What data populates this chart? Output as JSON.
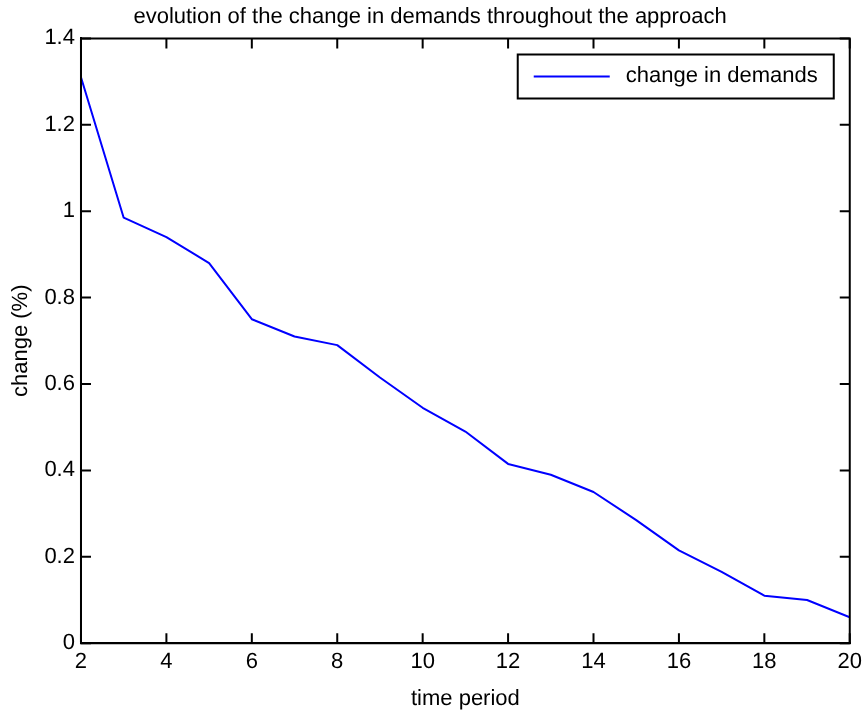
{
  "chart_data": {
    "type": "line",
    "title": "evolution of the change in demands throughout the approach",
    "xlabel": "time period",
    "ylabel": "change (%)",
    "x": [
      2,
      3,
      4,
      5,
      6,
      7,
      8,
      9,
      10,
      11,
      12,
      13,
      14,
      15,
      16,
      17,
      18,
      19,
      20
    ],
    "series": [
      {
        "name": "change in demands",
        "color": "#0000ff",
        "values": [
          1.31,
          0.985,
          0.94,
          0.88,
          0.75,
          0.71,
          0.69,
          0.615,
          0.545,
          0.49,
          0.415,
          0.39,
          0.35,
          0.285,
          0.215,
          0.165,
          0.11,
          0.1,
          0.06
        ]
      }
    ],
    "xlim": [
      2,
      20
    ],
    "xticks": [
      2,
      4,
      6,
      8,
      10,
      12,
      14,
      16,
      18,
      20
    ],
    "ylim": [
      0,
      1.4
    ],
    "yticks": [
      0,
      0.2,
      0.4,
      0.6,
      0.8,
      1,
      1.2,
      1.4
    ],
    "grid": false,
    "legend": "top right",
    "marker": "none",
    "line_style": "solid"
  }
}
